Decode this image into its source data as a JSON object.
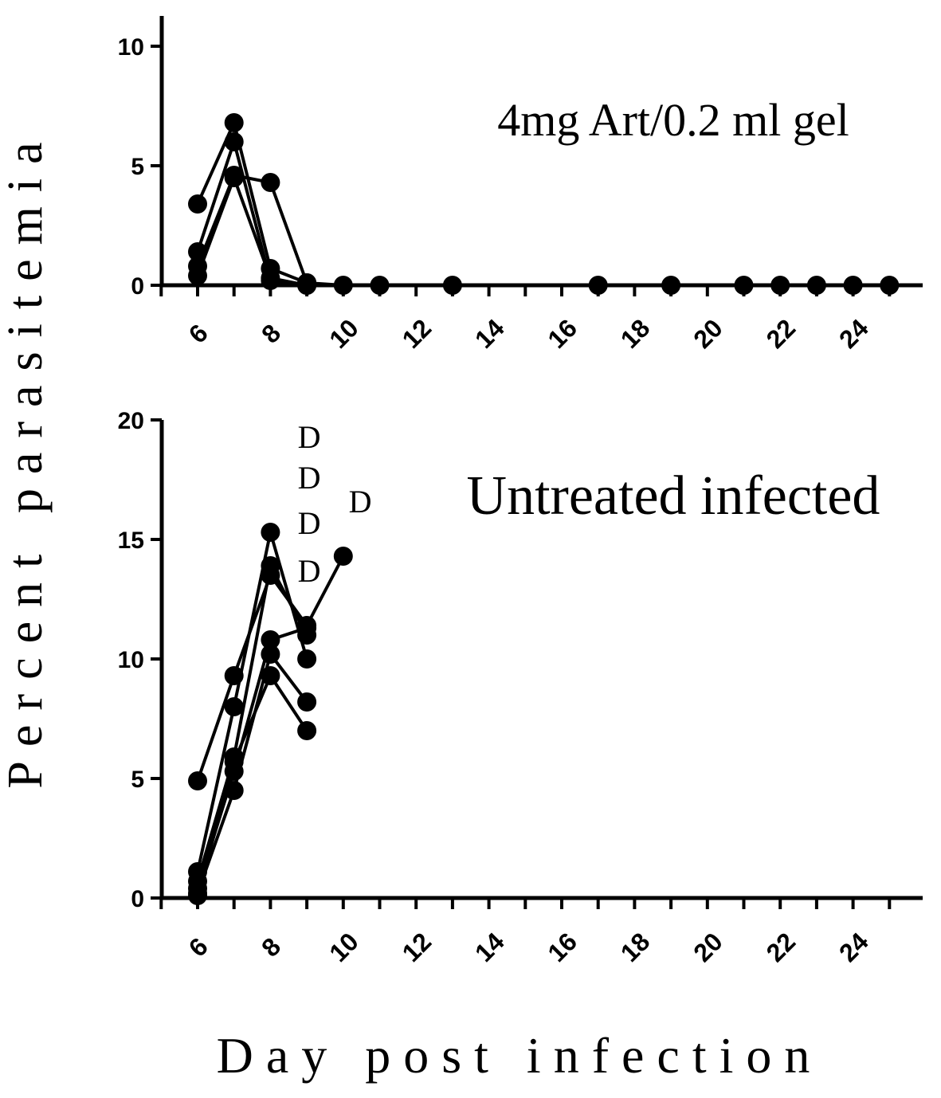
{
  "figure": {
    "ylabel": "Percent parasitemia",
    "xlabel": "Day post infection"
  },
  "chart_data": [
    {
      "type": "line",
      "annotation": "4mg Art/0.2 ml gel",
      "ylim": [
        0,
        10
      ],
      "yticks": [
        0,
        5,
        10
      ],
      "xticks": [
        6,
        8,
        10,
        12,
        14,
        16,
        18,
        20,
        22,
        24
      ],
      "xlim": [
        5,
        25.5
      ],
      "series": [
        {
          "x": [
            6,
            7,
            8,
            9,
            10,
            11,
            13,
            17,
            19,
            21,
            22,
            23,
            24,
            25
          ],
          "y": [
            3.4,
            6.8,
            0.7,
            0.1,
            0,
            0,
            0,
            0,
            0,
            0,
            0,
            0,
            0,
            0
          ]
        },
        {
          "x": [
            6,
            7,
            8,
            9
          ],
          "y": [
            1.4,
            6.0,
            0.2,
            0.0
          ]
        },
        {
          "x": [
            6,
            7,
            8,
            9
          ],
          "y": [
            0.8,
            4.6,
            4.3,
            0.1
          ]
        },
        {
          "x": [
            6,
            7,
            8,
            9
          ],
          "y": [
            0.4,
            4.5,
            0.3,
            0.0
          ]
        }
      ]
    },
    {
      "type": "line",
      "annotation": "Untreated infected",
      "ylim": [
        0,
        20
      ],
      "yticks": [
        0,
        5,
        10,
        15,
        20
      ],
      "xticks": [
        6,
        8,
        10,
        12,
        14,
        16,
        18,
        20,
        22,
        24
      ],
      "xlim": [
        5,
        25.5
      ],
      "death_markers": [
        {
          "text": "D",
          "x": 9,
          "y": 19.3
        },
        {
          "text": "D",
          "x": 9,
          "y": 17.6
        },
        {
          "text": "D",
          "x": 10.4,
          "y": 16.6
        },
        {
          "text": "D",
          "x": 9,
          "y": 15.7
        },
        {
          "text": "D",
          "x": 9,
          "y": 13.7
        }
      ],
      "series": [
        {
          "x": [
            6,
            7,
            8,
            9,
            10
          ],
          "y": [
            4.9,
            9.3,
            13.5,
            11.4,
            14.3
          ]
        },
        {
          "x": [
            6,
            7,
            8,
            9
          ],
          "y": [
            1.1,
            8.0,
            15.3,
            10.0
          ]
        },
        {
          "x": [
            6,
            7,
            8,
            9
          ],
          "y": [
            0.7,
            5.9,
            13.9,
            11.0
          ]
        },
        {
          "x": [
            6,
            7,
            8,
            9
          ],
          "y": [
            0.4,
            5.3,
            10.8,
            11.3
          ]
        },
        {
          "x": [
            6,
            7,
            8,
            9
          ],
          "y": [
            0.2,
            4.5,
            10.2,
            8.2
          ]
        },
        {
          "x": [
            6,
            7,
            8,
            9
          ],
          "y": [
            0.1,
            5.7,
            9.3,
            7.0
          ]
        }
      ]
    }
  ]
}
